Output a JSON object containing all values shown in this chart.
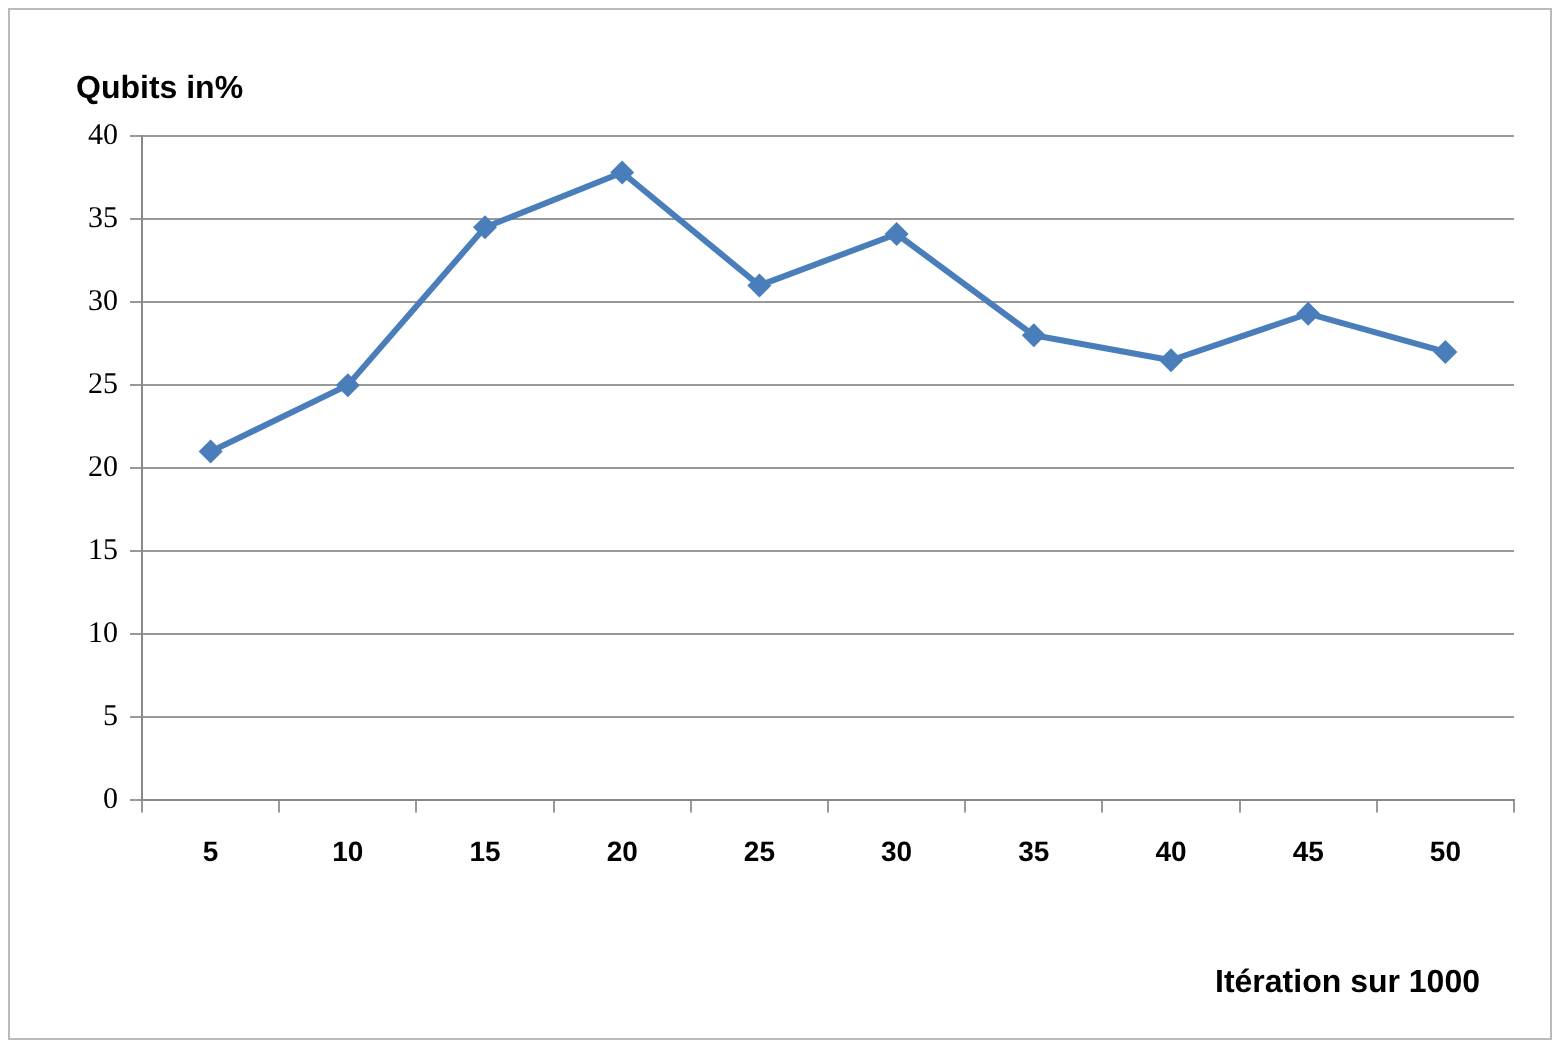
{
  "chart_data": {
    "type": "line",
    "ylabel": "Qubits in%",
    "xlabel": "Itération sur 1000",
    "categories": [
      "5",
      "10",
      "15",
      "20",
      "25",
      "30",
      "35",
      "40",
      "45",
      "50"
    ],
    "series": [
      {
        "color": "#4a7ebb",
        "values": [
          21,
          25,
          34.5,
          37.8,
          31,
          34.1,
          28,
          26.5,
          29.3,
          27
        ]
      }
    ],
    "ylim": [
      0,
      40
    ],
    "yticks": [
      0,
      5,
      10,
      15,
      20,
      25,
      30,
      35,
      40
    ],
    "grid": "y",
    "legend": false,
    "marker": "diamond",
    "line_style": "solid"
  }
}
